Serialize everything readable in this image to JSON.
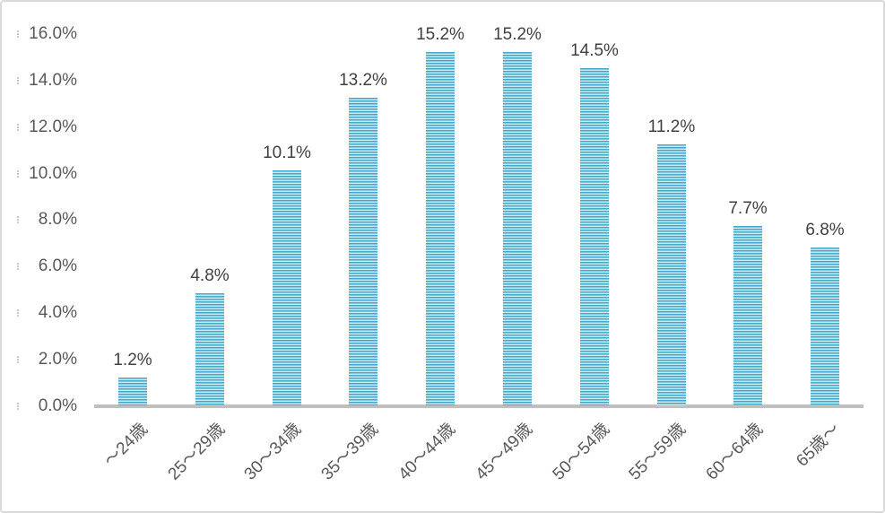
{
  "chart_data": {
    "type": "bar",
    "title": "",
    "categories": [
      "～24歳",
      "25～29歳",
      "30～34歳",
      "35～39歳",
      "40～44歳",
      "45～49歳",
      "50～54歳",
      "55～59歳",
      "60～64歳",
      "65歳～"
    ],
    "values": [
      1.2,
      4.8,
      10.1,
      13.2,
      15.2,
      15.2,
      14.5,
      11.2,
      7.7,
      6.8
    ],
    "data_labels": [
      "1.2%",
      "4.8%",
      "10.1%",
      "13.2%",
      "15.2%",
      "15.2%",
      "14.5%",
      "11.2%",
      "7.7%",
      "6.8%"
    ],
    "y_ticks": [
      "0.0%",
      "2.0%",
      "4.0%",
      "6.0%",
      "8.0%",
      "10.0%",
      "12.0%",
      "14.0%",
      "16.0%"
    ],
    "xlabel": "",
    "ylabel": "",
    "ylim": [
      0,
      16
    ],
    "grid": false,
    "legend": "none",
    "bar_pattern": "horizontal-stripes",
    "colors": {
      "bar_stripe_dark": "#44a7c8",
      "bar_stripe_light": "#cbe9f3",
      "axis_line": "#bfbfbf",
      "axis_text": "#595959",
      "data_label_text": "#404040",
      "chart_border": "#d9d9d9",
      "background": "#ffffff"
    }
  }
}
